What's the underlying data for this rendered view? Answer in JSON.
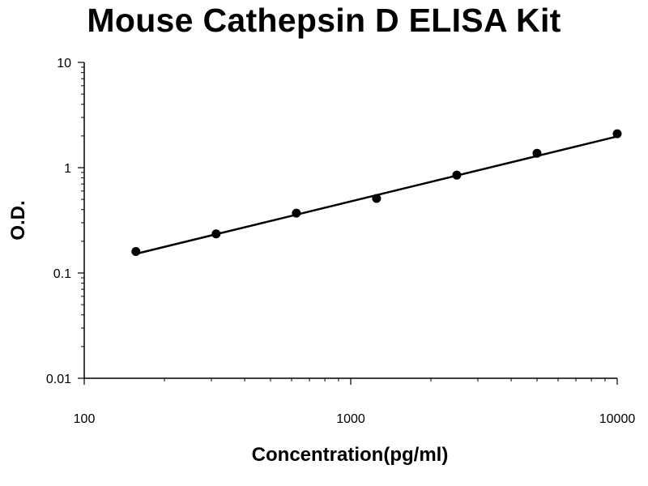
{
  "chart_data": {
    "type": "scatter",
    "title": "Mouse Cathepsin D ELISA Kit",
    "xlabel": "Concentration(pg/ml)",
    "ylabel": "O.D.",
    "x_scale": "log",
    "y_scale": "log",
    "xlim": [
      100,
      10000
    ],
    "ylim": [
      0.01,
      10
    ],
    "x_ticks": [
      "100",
      "1000",
      "10000"
    ],
    "y_ticks": [
      "0.01",
      "0.1",
      "1",
      "10"
    ],
    "grid": false,
    "legend": "none",
    "series": [
      {
        "x": [
          156.25,
          312.5,
          625,
          1250,
          2500,
          5000,
          10000
        ],
        "y": [
          0.16,
          0.235,
          0.37,
          0.51,
          0.85,
          1.37,
          2.1
        ],
        "marker_color": "#000000"
      }
    ],
    "fit_line": {
      "x": [
        156.25,
        10000
      ],
      "y": [
        0.152,
        1.98
      ],
      "color": "#000000"
    }
  }
}
